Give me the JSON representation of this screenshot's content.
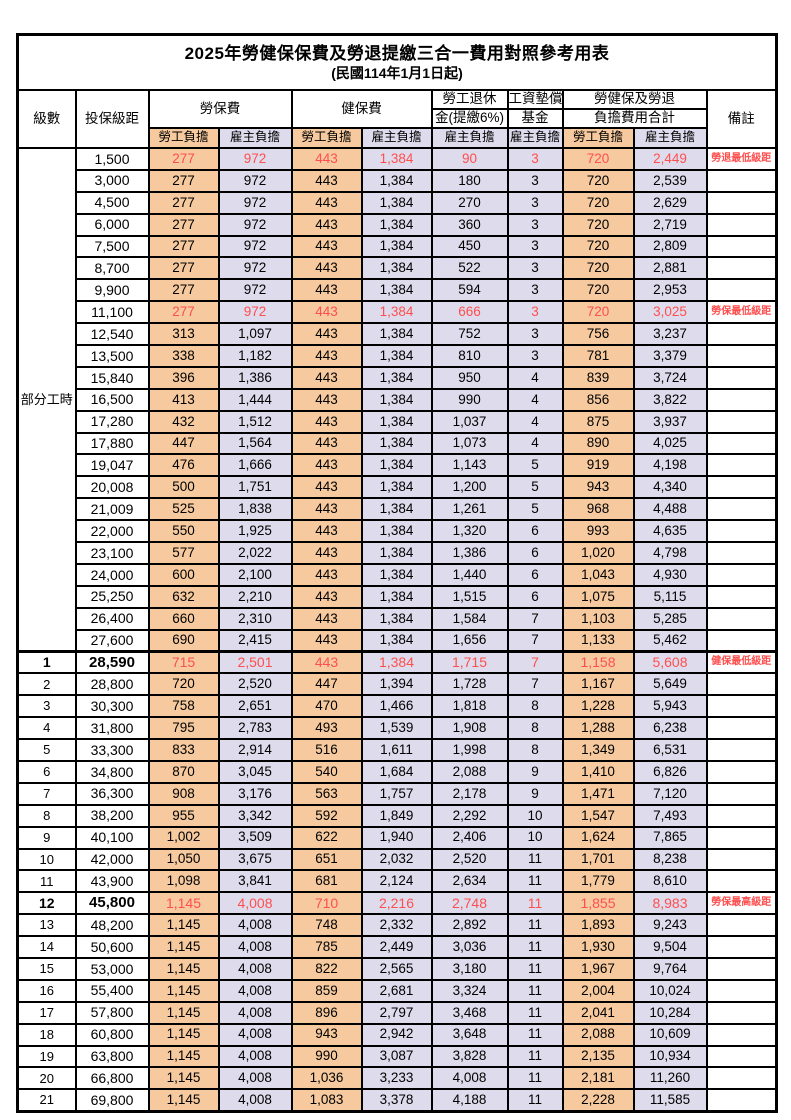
{
  "title": "2025年勞健保保費及勞退提繳三合一費用對照參考用表",
  "subtitle": "(民國114年1月1日起)",
  "header": {
    "level": "級數",
    "bracket": "投保級距",
    "labor_fee": "勞保費",
    "health_fee": "健保費",
    "pension_l1": "勞工退休",
    "pension_l2": "金(提繳6%)",
    "wage_l1": "工資墊償",
    "wage_l2": "基金",
    "total_l1": "勞健保及勞退",
    "total_l2": "負擔費用合計",
    "remark": "備註",
    "employee_share": "勞工負擔",
    "employer_share": "雇主負擔"
  },
  "colors": {
    "employee_bg": "#F6CA9E",
    "employer_bg": "#DEDCEC",
    "highlight_text": "#FF4E4E",
    "border": "#000000"
  },
  "rows": [
    {
      "level": "部分工時",
      "levelRowspan": 23,
      "bracket": "1,500",
      "v": [
        "277",
        "972",
        "443",
        "1,384",
        "90",
        "3",
        "720",
        "2,449"
      ],
      "remark": "勞退最低級距",
      "red": true
    },
    {
      "bracket": "3,000",
      "v": [
        "277",
        "972",
        "443",
        "1,384",
        "180",
        "3",
        "720",
        "2,539"
      ]
    },
    {
      "bracket": "4,500",
      "v": [
        "277",
        "972",
        "443",
        "1,384",
        "270",
        "3",
        "720",
        "2,629"
      ]
    },
    {
      "bracket": "6,000",
      "v": [
        "277",
        "972",
        "443",
        "1,384",
        "360",
        "3",
        "720",
        "2,719"
      ]
    },
    {
      "bracket": "7,500",
      "v": [
        "277",
        "972",
        "443",
        "1,384",
        "450",
        "3",
        "720",
        "2,809"
      ]
    },
    {
      "bracket": "8,700",
      "v": [
        "277",
        "972",
        "443",
        "1,384",
        "522",
        "3",
        "720",
        "2,881"
      ]
    },
    {
      "bracket": "9,900",
      "v": [
        "277",
        "972",
        "443",
        "1,384",
        "594",
        "3",
        "720",
        "2,953"
      ]
    },
    {
      "bracket": "11,100",
      "v": [
        "277",
        "972",
        "443",
        "1,384",
        "666",
        "3",
        "720",
        "3,025"
      ],
      "remark": "勞保最低級距",
      "red": true
    },
    {
      "bracket": "12,540",
      "v": [
        "313",
        "1,097",
        "443",
        "1,384",
        "752",
        "3",
        "756",
        "3,237"
      ]
    },
    {
      "bracket": "13,500",
      "v": [
        "338",
        "1,182",
        "443",
        "1,384",
        "810",
        "3",
        "781",
        "3,379"
      ]
    },
    {
      "bracket": "15,840",
      "v": [
        "396",
        "1,386",
        "443",
        "1,384",
        "950",
        "4",
        "839",
        "3,724"
      ]
    },
    {
      "bracket": "16,500",
      "v": [
        "413",
        "1,444",
        "443",
        "1,384",
        "990",
        "4",
        "856",
        "3,822"
      ]
    },
    {
      "bracket": "17,280",
      "v": [
        "432",
        "1,512",
        "443",
        "1,384",
        "1,037",
        "4",
        "875",
        "3,937"
      ]
    },
    {
      "bracket": "17,880",
      "v": [
        "447",
        "1,564",
        "443",
        "1,384",
        "1,073",
        "4",
        "890",
        "4,025"
      ]
    },
    {
      "bracket": "19,047",
      "v": [
        "476",
        "1,666",
        "443",
        "1,384",
        "1,143",
        "5",
        "919",
        "4,198"
      ]
    },
    {
      "bracket": "20,008",
      "v": [
        "500",
        "1,751",
        "443",
        "1,384",
        "1,200",
        "5",
        "943",
        "4,340"
      ]
    },
    {
      "bracket": "21,009",
      "v": [
        "525",
        "1,838",
        "443",
        "1,384",
        "1,261",
        "5",
        "968",
        "4,488"
      ]
    },
    {
      "bracket": "22,000",
      "v": [
        "550",
        "1,925",
        "443",
        "1,384",
        "1,320",
        "6",
        "993",
        "4,635"
      ]
    },
    {
      "bracket": "23,100",
      "v": [
        "577",
        "2,022",
        "443",
        "1,384",
        "1,386",
        "6",
        "1,020",
        "4,798"
      ]
    },
    {
      "bracket": "24,000",
      "v": [
        "600",
        "2,100",
        "443",
        "1,384",
        "1,440",
        "6",
        "1,043",
        "4,930"
      ]
    },
    {
      "bracket": "25,250",
      "v": [
        "632",
        "2,210",
        "443",
        "1,384",
        "1,515",
        "6",
        "1,075",
        "5,115"
      ]
    },
    {
      "bracket": "26,400",
      "v": [
        "660",
        "2,310",
        "443",
        "1,384",
        "1,584",
        "7",
        "1,103",
        "5,285"
      ]
    },
    {
      "bracket": "27,600",
      "v": [
        "690",
        "2,415",
        "443",
        "1,384",
        "1,656",
        "7",
        "1,133",
        "5,462"
      ]
    },
    {
      "level": "1",
      "bracket": "28,590",
      "v": [
        "715",
        "2,501",
        "443",
        "1,384",
        "1,715",
        "7",
        "1,158",
        "5,608"
      ],
      "remark": "健保最低級距",
      "red": true,
      "bold": true,
      "thickTop": true
    },
    {
      "level": "2",
      "bracket": "28,800",
      "v": [
        "720",
        "2,520",
        "447",
        "1,394",
        "1,728",
        "7",
        "1,167",
        "5,649"
      ]
    },
    {
      "level": "3",
      "bracket": "30,300",
      "v": [
        "758",
        "2,651",
        "470",
        "1,466",
        "1,818",
        "8",
        "1,228",
        "5,943"
      ]
    },
    {
      "level": "4",
      "bracket": "31,800",
      "v": [
        "795",
        "2,783",
        "493",
        "1,539",
        "1,908",
        "8",
        "1,288",
        "6,238"
      ]
    },
    {
      "level": "5",
      "bracket": "33,300",
      "v": [
        "833",
        "2,914",
        "516",
        "1,611",
        "1,998",
        "8",
        "1,349",
        "6,531"
      ]
    },
    {
      "level": "6",
      "bracket": "34,800",
      "v": [
        "870",
        "3,045",
        "540",
        "1,684",
        "2,088",
        "9",
        "1,410",
        "6,826"
      ]
    },
    {
      "level": "7",
      "bracket": "36,300",
      "v": [
        "908",
        "3,176",
        "563",
        "1,757",
        "2,178",
        "9",
        "1,471",
        "7,120"
      ]
    },
    {
      "level": "8",
      "bracket": "38,200",
      "v": [
        "955",
        "3,342",
        "592",
        "1,849",
        "2,292",
        "10",
        "1,547",
        "7,493"
      ]
    },
    {
      "level": "9",
      "bracket": "40,100",
      "v": [
        "1,002",
        "3,509",
        "622",
        "1,940",
        "2,406",
        "10",
        "1,624",
        "7,865"
      ]
    },
    {
      "level": "10",
      "bracket": "42,000",
      "v": [
        "1,050",
        "3,675",
        "651",
        "2,032",
        "2,520",
        "11",
        "1,701",
        "8,238"
      ]
    },
    {
      "level": "11",
      "bracket": "43,900",
      "v": [
        "1,098",
        "3,841",
        "681",
        "2,124",
        "2,634",
        "11",
        "1,779",
        "8,610"
      ]
    },
    {
      "level": "12",
      "bracket": "45,800",
      "v": [
        "1,145",
        "4,008",
        "710",
        "2,216",
        "2,748",
        "11",
        "1,855",
        "8,983"
      ],
      "remark": "勞保最高級距",
      "red": true,
      "bold": true
    },
    {
      "level": "13",
      "bracket": "48,200",
      "v": [
        "1,145",
        "4,008",
        "748",
        "2,332",
        "2,892",
        "11",
        "1,893",
        "9,243"
      ]
    },
    {
      "level": "14",
      "bracket": "50,600",
      "v": [
        "1,145",
        "4,008",
        "785",
        "2,449",
        "3,036",
        "11",
        "1,930",
        "9,504"
      ]
    },
    {
      "level": "15",
      "bracket": "53,000",
      "v": [
        "1,145",
        "4,008",
        "822",
        "2,565",
        "3,180",
        "11",
        "1,967",
        "9,764"
      ]
    },
    {
      "level": "16",
      "bracket": "55,400",
      "v": [
        "1,145",
        "4,008",
        "859",
        "2,681",
        "3,324",
        "11",
        "2,004",
        "10,024"
      ]
    },
    {
      "level": "17",
      "bracket": "57,800",
      "v": [
        "1,145",
        "4,008",
        "896",
        "2,797",
        "3,468",
        "11",
        "2,041",
        "10,284"
      ]
    },
    {
      "level": "18",
      "bracket": "60,800",
      "v": [
        "1,145",
        "4,008",
        "943",
        "2,942",
        "3,648",
        "11",
        "2,088",
        "10,609"
      ]
    },
    {
      "level": "19",
      "bracket": "63,800",
      "v": [
        "1,145",
        "4,008",
        "990",
        "3,087",
        "3,828",
        "11",
        "2,135",
        "10,934"
      ]
    },
    {
      "level": "20",
      "bracket": "66,800",
      "v": [
        "1,145",
        "4,008",
        "1,036",
        "3,233",
        "4,008",
        "11",
        "2,181",
        "11,260"
      ]
    },
    {
      "level": "21",
      "bracket": "69,800",
      "v": [
        "1,145",
        "4,008",
        "1,083",
        "3,378",
        "4,188",
        "11",
        "2,228",
        "11,585"
      ]
    }
  ]
}
